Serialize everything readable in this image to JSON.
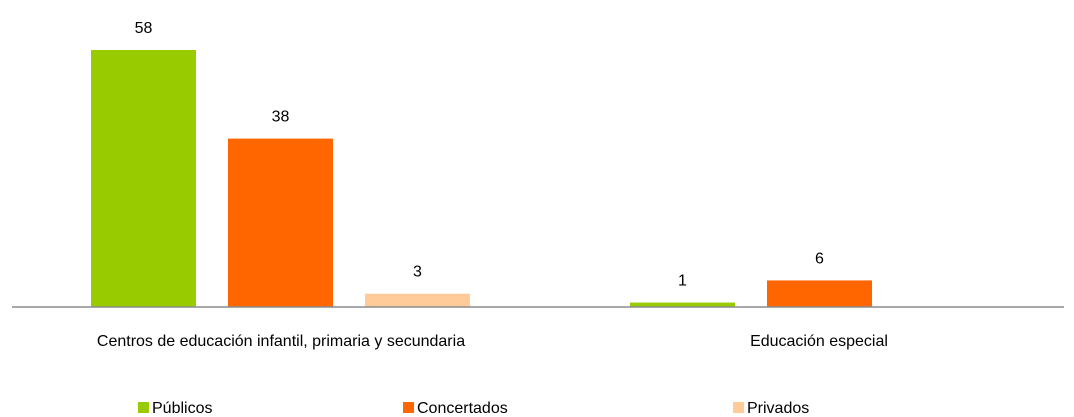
{
  "chart_data": {
    "type": "bar",
    "categories": [
      "Centros de educación infantil, primaria y secundaria",
      "Educación especial"
    ],
    "series": [
      {
        "name": "Públicos",
        "color": "#99CC00",
        "values": [
          58,
          1
        ]
      },
      {
        "name": "Concertados",
        "color": "#FF6600",
        "values": [
          38,
          6
        ]
      },
      {
        "name": "Privados",
        "color": "#FFCC99",
        "values": [
          3,
          null
        ]
      }
    ],
    "data_labels": true,
    "legend": "bottom",
    "grid": false,
    "title": "",
    "xlabel": "",
    "ylabel": "",
    "ylim": [
      0,
      58
    ]
  }
}
